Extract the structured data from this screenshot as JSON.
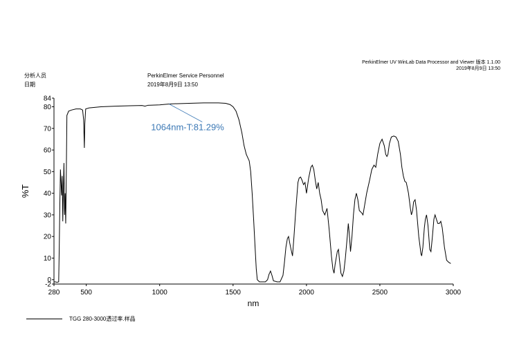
{
  "header": {
    "software": "PerkinElmer UV WinLab Data Processor and Viewer 版本 1.1.00",
    "software_date": "2019年8月9日 13:50",
    "analyst_label": "分析人员",
    "date_label": "日期",
    "analyst_value": "PerkinElmer Service Personnel",
    "date_value": "2019年8月9日 13:50"
  },
  "legend": {
    "label": "TGG 280-3000透过率.样品",
    "color": "#000000"
  },
  "chart_data": {
    "type": "line",
    "title": "",
    "xlabel": "nm",
    "ylabel": "%T",
    "xlim": [
      280,
      3000
    ],
    "ylim": [
      -2,
      84
    ],
    "x_ticks": [
      280,
      500,
      1000,
      1500,
      2000,
      2500,
      3000
    ],
    "y_ticks": [
      -2,
      0,
      10,
      20,
      30,
      40,
      50,
      60,
      70,
      80,
      84
    ],
    "grid": false,
    "annotation": {
      "text": "1064nm-T:81.29%",
      "x": 1064,
      "y": 81.29,
      "color": "#3b78b5"
    },
    "series": [
      {
        "name": "TGG 280-3000透过率.样品",
        "color": "#000000",
        "points": [
          [
            280,
            -1
          ],
          [
            290,
            -1
          ],
          [
            300,
            -1.2
          ],
          [
            312,
            -1
          ],
          [
            316,
            15
          ],
          [
            320,
            35
          ],
          [
            324,
            51
          ],
          [
            328,
            45
          ],
          [
            332,
            39
          ],
          [
            336,
            48
          ],
          [
            340,
            27
          ],
          [
            344,
            42
          ],
          [
            348,
            54
          ],
          [
            352,
            30
          ],
          [
            356,
            40
          ],
          [
            360,
            26
          ],
          [
            364,
            49
          ],
          [
            368,
            76
          ],
          [
            380,
            78
          ],
          [
            400,
            78.5
          ],
          [
            430,
            79
          ],
          [
            460,
            79
          ],
          [
            475,
            78.5
          ],
          [
            482,
            74
          ],
          [
            487,
            61
          ],
          [
            490,
            72
          ],
          [
            496,
            79
          ],
          [
            520,
            79.5
          ],
          [
            600,
            80
          ],
          [
            700,
            80.3
          ],
          [
            800,
            80.5
          ],
          [
            880,
            80.6
          ],
          [
            900,
            80.3
          ],
          [
            920,
            80.7
          ],
          [
            1000,
            80.9
          ],
          [
            1064,
            81.29
          ],
          [
            1100,
            81.4
          ],
          [
            1200,
            81.6
          ],
          [
            1300,
            81.8
          ],
          [
            1400,
            81.8
          ],
          [
            1450,
            81.6
          ],
          [
            1480,
            81
          ],
          [
            1500,
            80
          ],
          [
            1520,
            78
          ],
          [
            1540,
            74
          ],
          [
            1560,
            68
          ],
          [
            1575,
            62
          ],
          [
            1590,
            58
          ],
          [
            1600,
            56.5
          ],
          [
            1610,
            55
          ],
          [
            1620,
            50
          ],
          [
            1630,
            40
          ],
          [
            1640,
            28
          ],
          [
            1650,
            15
          ],
          [
            1658,
            5
          ],
          [
            1665,
            0
          ],
          [
            1680,
            -1
          ],
          [
            1700,
            -1
          ],
          [
            1720,
            -1
          ],
          [
            1735,
            0
          ],
          [
            1745,
            2.5
          ],
          [
            1755,
            4
          ],
          [
            1765,
            2
          ],
          [
            1775,
            -0.5
          ],
          [
            1800,
            -1
          ],
          [
            1820,
            -1
          ],
          [
            1840,
            2
          ],
          [
            1850,
            8
          ],
          [
            1860,
            15
          ],
          [
            1870,
            19
          ],
          [
            1878,
            20
          ],
          [
            1886,
            17
          ],
          [
            1895,
            14
          ],
          [
            1905,
            11
          ],
          [
            1915,
            20
          ],
          [
            1925,
            30
          ],
          [
            1935,
            39
          ],
          [
            1942,
            45
          ],
          [
            1950,
            47
          ],
          [
            1960,
            47.5
          ],
          [
            1970,
            46
          ],
          [
            1980,
            44
          ],
          [
            1990,
            45
          ],
          [
            2000,
            40
          ],
          [
            2015,
            47
          ],
          [
            2030,
            52
          ],
          [
            2040,
            53
          ],
          [
            2050,
            51
          ],
          [
            2060,
            46
          ],
          [
            2070,
            42
          ],
          [
            2080,
            45
          ],
          [
            2090,
            40
          ],
          [
            2100,
            37
          ],
          [
            2110,
            32
          ],
          [
            2125,
            30
          ],
          [
            2140,
            33
          ],
          [
            2155,
            23
          ],
          [
            2170,
            11
          ],
          [
            2180,
            5
          ],
          [
            2188,
            3
          ],
          [
            2195,
            7
          ],
          [
            2210,
            13
          ],
          [
            2218,
            14
          ],
          [
            2225,
            9
          ],
          [
            2235,
            3
          ],
          [
            2245,
            1.5
          ],
          [
            2255,
            4
          ],
          [
            2265,
            10
          ],
          [
            2278,
            20
          ],
          [
            2285,
            26
          ],
          [
            2292,
            21
          ],
          [
            2300,
            13
          ],
          [
            2310,
            20
          ],
          [
            2320,
            30
          ],
          [
            2330,
            37
          ],
          [
            2340,
            40
          ],
          [
            2350,
            37
          ],
          [
            2360,
            32
          ],
          [
            2375,
            31
          ],
          [
            2385,
            30
          ],
          [
            2395,
            34
          ],
          [
            2410,
            40
          ],
          [
            2430,
            46
          ],
          [
            2445,
            51
          ],
          [
            2460,
            53
          ],
          [
            2472,
            52
          ],
          [
            2485,
            58
          ],
          [
            2500,
            63
          ],
          [
            2515,
            65
          ],
          [
            2530,
            62
          ],
          [
            2540,
            58
          ],
          [
            2548,
            57
          ],
          [
            2555,
            58
          ],
          [
            2565,
            63
          ],
          [
            2578,
            66
          ],
          [
            2595,
            66.5
          ],
          [
            2610,
            66
          ],
          [
            2625,
            64
          ],
          [
            2640,
            58
          ],
          [
            2650,
            52
          ],
          [
            2660,
            48
          ],
          [
            2670,
            45.5
          ],
          [
            2680,
            45
          ],
          [
            2695,
            40
          ],
          [
            2708,
            33
          ],
          [
            2715,
            30
          ],
          [
            2723,
            32
          ],
          [
            2730,
            36
          ],
          [
            2740,
            37
          ],
          [
            2750,
            32
          ],
          [
            2765,
            20
          ],
          [
            2780,
            12
          ],
          [
            2785,
            11
          ],
          [
            2793,
            15
          ],
          [
            2803,
            24
          ],
          [
            2810,
            28
          ],
          [
            2818,
            30
          ],
          [
            2828,
            25
          ],
          [
            2840,
            14
          ],
          [
            2848,
            13
          ],
          [
            2858,
            20
          ],
          [
            2868,
            28
          ],
          [
            2876,
            30
          ],
          [
            2885,
            28
          ],
          [
            2895,
            26
          ],
          [
            2905,
            26
          ],
          [
            2915,
            27
          ],
          [
            2925,
            24
          ],
          [
            2940,
            15
          ],
          [
            2955,
            9
          ],
          [
            2970,
            8
          ],
          [
            2983,
            7.5
          ]
        ]
      }
    ]
  }
}
